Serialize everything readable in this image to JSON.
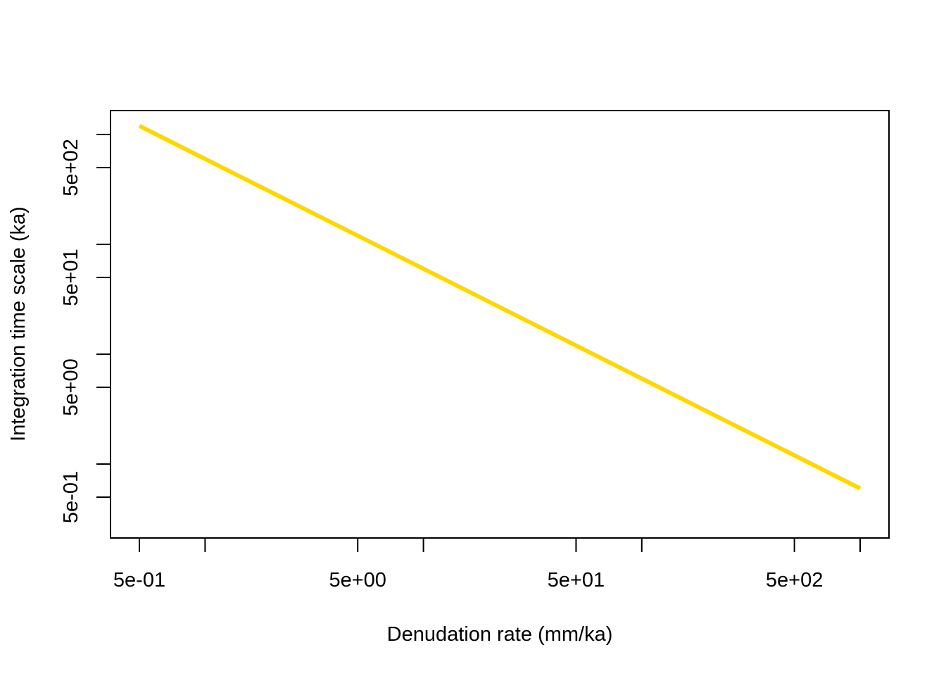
{
  "chart_data": {
    "type": "line",
    "title": "",
    "xlabel": "Denudation rate (mm/ka)",
    "ylabel": "Integration time scale (ka)",
    "x_scale": "log10",
    "y_scale": "log10",
    "xlim": [
      0.5,
      1000
    ],
    "ylim": [
      0.6,
      600
    ],
    "x_ticks": [
      0.5,
      1,
      5,
      10,
      50,
      100,
      500,
      1000
    ],
    "x_tick_labels": [
      {
        "value": 0.5,
        "label": "5e-01"
      },
      {
        "value": 5,
        "label": "5e+00"
      },
      {
        "value": 50,
        "label": "5e+01"
      },
      {
        "value": 500,
        "label": "5e+02"
      }
    ],
    "y_ticks": [
      0.5,
      1,
      5,
      10,
      50,
      100,
      500,
      1000
    ],
    "y_tick_labels": [
      {
        "value": 0.5,
        "label": "5e-01"
      },
      {
        "value": 5,
        "label": "5e+00"
      },
      {
        "value": 50,
        "label": "5e+01"
      },
      {
        "value": 500,
        "label": "5e+02"
      }
    ],
    "series": [
      {
        "color": "#FFD700",
        "x": [
          0.5,
          1000
        ],
        "y": [
          1200,
          0.6
        ]
      }
    ],
    "grid": false,
    "legend": "none"
  }
}
